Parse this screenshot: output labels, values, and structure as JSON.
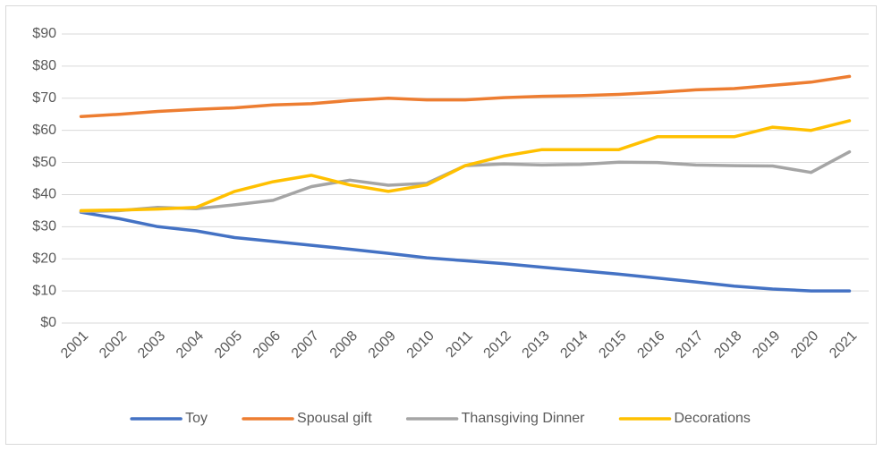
{
  "chart_data": {
    "type": "line",
    "categories": [
      "2001",
      "2002",
      "2003",
      "2004",
      "2005",
      "2006",
      "2007",
      "2008",
      "2009",
      "2010",
      "2011",
      "2012",
      "2013",
      "2014",
      "2015",
      "2016",
      "2017",
      "2018",
      "2019",
      "2020",
      "2021"
    ],
    "series": [
      {
        "name": "Toy",
        "color": "#4472c4",
        "values": [
          34.5,
          32.5,
          30,
          28.7,
          26.6,
          25.4,
          24.2,
          23,
          21.7,
          20.3,
          19.4,
          18.5,
          17.4,
          16.3,
          15.2,
          14,
          12.8,
          11.5,
          10.6,
          10,
          10
        ]
      },
      {
        "name": "Spousal gift",
        "color": "#ed7d31",
        "values": [
          64.3,
          65,
          65.9,
          66.5,
          67,
          67.9,
          68.3,
          69.3,
          70,
          69.5,
          69.5,
          70.2,
          70.6,
          70.8,
          71.2,
          71.8,
          72.6,
          73,
          74,
          75,
          76.8
        ]
      },
      {
        "name": "Thansgiving Dinner",
        "color": "#a5a5a5",
        "values": [
          34.7,
          35,
          36,
          35.6,
          36.8,
          38.2,
          42.5,
          44.5,
          42.9,
          43.5,
          49,
          49.5,
          49.2,
          49.4,
          50.1,
          50,
          49.2,
          49,
          48.9,
          46.9,
          53.3
        ]
      },
      {
        "name": "Decorations",
        "color": "#ffc000",
        "values": [
          35,
          35.2,
          35.5,
          36,
          41,
          44,
          46,
          43,
          41,
          43,
          49,
          52,
          54,
          54,
          54,
          58,
          58,
          58,
          61,
          60,
          63
        ]
      }
    ],
    "ylim": [
      0,
      90
    ],
    "yticks": [
      {
        "value": 0,
        "label": "$0"
      },
      {
        "value": 10,
        "label": "$10"
      },
      {
        "value": 20,
        "label": "$20"
      },
      {
        "value": 30,
        "label": "$30"
      },
      {
        "value": 40,
        "label": "$40"
      },
      {
        "value": 50,
        "label": "$50"
      },
      {
        "value": 60,
        "label": "$60"
      },
      {
        "value": 70,
        "label": "$70"
      },
      {
        "value": 80,
        "label": "$80"
      },
      {
        "value": 90,
        "label": "$90"
      }
    ],
    "grid": true,
    "legend": "bottom"
  }
}
